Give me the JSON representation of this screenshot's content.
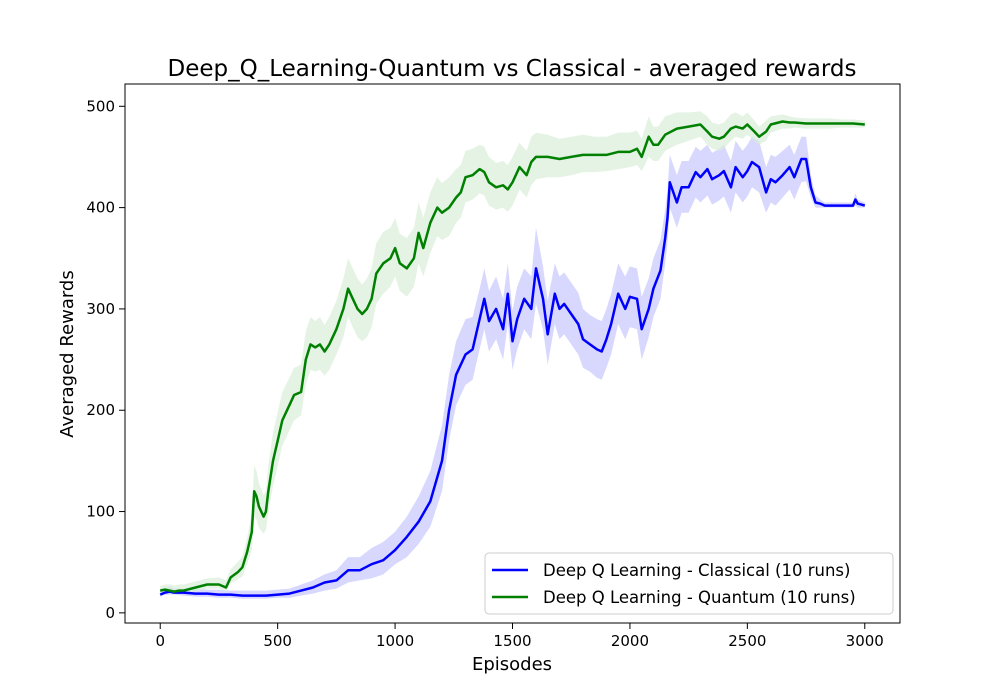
{
  "chart_data": {
    "type": "line",
    "title": "Deep_Q_Learning-Quantum vs Classical - averaged rewards",
    "xlabel": "Episodes",
    "ylabel": "Averaged Rewards",
    "xlim": [
      -150,
      3150
    ],
    "ylim": [
      -10,
      522
    ],
    "xticks": [
      0,
      500,
      1000,
      1500,
      2000,
      2500,
      3000
    ],
    "yticks": [
      0,
      100,
      200,
      300,
      400,
      500
    ],
    "grid": false,
    "legend_position": "bottom-right",
    "series": [
      {
        "name": "Deep Q Learning - Classical (10 runs)",
        "color": "#0000ff",
        "band_color": "#c8c8ff",
        "x": [
          0,
          20,
          40,
          60,
          100,
          150,
          200,
          250,
          300,
          350,
          400,
          450,
          500,
          550,
          600,
          650,
          700,
          750,
          800,
          850,
          900,
          950,
          1000,
          1050,
          1100,
          1150,
          1200,
          1230,
          1260,
          1300,
          1330,
          1360,
          1380,
          1400,
          1430,
          1460,
          1480,
          1500,
          1520,
          1550,
          1580,
          1600,
          1630,
          1650,
          1680,
          1700,
          1720,
          1750,
          1780,
          1800,
          1830,
          1860,
          1880,
          1900,
          1920,
          1950,
          1980,
          2000,
          2030,
          2050,
          2080,
          2100,
          2130,
          2150,
          2160,
          2170,
          2200,
          2220,
          2250,
          2280,
          2300,
          2330,
          2350,
          2380,
          2400,
          2430,
          2450,
          2480,
          2500,
          2520,
          2550,
          2580,
          2600,
          2620,
          2650,
          2680,
          2700,
          2730,
          2750,
          2770,
          2790,
          2810,
          2830,
          2850,
          2900,
          2950,
          2960,
          2970,
          3000
        ],
        "y": [
          18,
          20,
          21,
          20,
          20,
          19,
          19,
          18,
          18,
          17,
          17,
          17,
          18,
          19,
          22,
          25,
          30,
          32,
          42,
          42,
          48,
          52,
          62,
          75,
          90,
          110,
          150,
          200,
          235,
          255,
          260,
          290,
          310,
          288,
          300,
          280,
          315,
          268,
          290,
          310,
          300,
          340,
          310,
          275,
          315,
          300,
          305,
          295,
          285,
          270,
          265,
          260,
          258,
          270,
          285,
          315,
          300,
          312,
          310,
          280,
          300,
          320,
          338,
          370,
          390,
          425,
          405,
          420,
          420,
          435,
          430,
          438,
          428,
          432,
          436,
          420,
          440,
          430,
          436,
          445,
          440,
          415,
          428,
          425,
          432,
          440,
          430,
          448,
          448,
          420,
          405,
          404,
          402,
          402,
          402,
          402,
          408,
          404,
          402
        ],
        "band_low": [
          16,
          18,
          18,
          18,
          17,
          16,
          16,
          15,
          15,
          14,
          14,
          14,
          15,
          15,
          17,
          19,
          22,
          24,
          30,
          32,
          34,
          38,
          48,
          55,
          68,
          85,
          120,
          170,
          205,
          225,
          230,
          260,
          280,
          258,
          270,
          250,
          285,
          240,
          260,
          280,
          270,
          305,
          280,
          245,
          285,
          270,
          275,
          265,
          255,
          242,
          238,
          232,
          230,
          242,
          255,
          285,
          270,
          282,
          280,
          250,
          272,
          292,
          310,
          345,
          365,
          400,
          380,
          395,
          395,
          410,
          405,
          412,
          403,
          407,
          411,
          395,
          415,
          405,
          411,
          420,
          415,
          395,
          405,
          402,
          410,
          418,
          408,
          425,
          426,
          410,
          400,
          400,
          400,
          400,
          400,
          400,
          402,
          400,
          400
        ],
        "band_high": [
          22,
          24,
          26,
          24,
          24,
          24,
          23,
          23,
          22,
          22,
          22,
          22,
          23,
          24,
          28,
          32,
          38,
          42,
          55,
          55,
          64,
          70,
          80,
          95,
          115,
          140,
          185,
          235,
          268,
          290,
          292,
          320,
          340,
          318,
          332,
          310,
          345,
          298,
          322,
          340,
          332,
          380,
          342,
          308,
          345,
          332,
          336,
          326,
          316,
          300,
          294,
          290,
          288,
          300,
          315,
          345,
          332,
          342,
          340,
          312,
          330,
          350,
          368,
          398,
          418,
          452,
          432,
          446,
          446,
          460,
          456,
          462,
          454,
          458,
          462,
          446,
          466,
          456,
          462,
          470,
          466,
          440,
          452,
          450,
          456,
          462,
          452,
          470,
          470,
          432,
          412,
          408,
          405,
          405,
          405,
          405,
          414,
          408,
          405
        ]
      },
      {
        "name": "Deep Q Learning - Quantum (10 runs)",
        "color": "#008000",
        "band_color": "#d8eed8",
        "x": [
          0,
          20,
          40,
          60,
          80,
          100,
          150,
          200,
          250,
          280,
          300,
          330,
          350,
          370,
          390,
          400,
          410,
          420,
          440,
          450,
          460,
          480,
          500,
          520,
          550,
          570,
          600,
          620,
          640,
          660,
          680,
          700,
          720,
          750,
          780,
          800,
          820,
          840,
          860,
          880,
          900,
          920,
          950,
          980,
          1000,
          1020,
          1050,
          1080,
          1100,
          1120,
          1150,
          1180,
          1200,
          1230,
          1260,
          1280,
          1300,
          1330,
          1360,
          1380,
          1400,
          1430,
          1460,
          1480,
          1500,
          1530,
          1560,
          1580,
          1600,
          1650,
          1700,
          1750,
          1800,
          1850,
          1900,
          1950,
          2000,
          2030,
          2050,
          2080,
          2100,
          2120,
          2150,
          2200,
          2250,
          2300,
          2330,
          2350,
          2380,
          2400,
          2430,
          2450,
          2480,
          2500,
          2530,
          2550,
          2580,
          2600,
          2650,
          2680,
          2700,
          2750,
          2800,
          2850,
          2900,
          2950,
          3000
        ],
        "y": [
          22,
          23,
          22,
          21,
          22,
          22,
          25,
          28,
          28,
          25,
          35,
          40,
          45,
          60,
          80,
          120,
          115,
          105,
          95,
          100,
          120,
          150,
          170,
          190,
          205,
          215,
          218,
          250,
          265,
          262,
          265,
          258,
          265,
          280,
          300,
          320,
          310,
          300,
          295,
          300,
          310,
          335,
          345,
          350,
          360,
          345,
          340,
          350,
          375,
          360,
          385,
          400,
          395,
          400,
          410,
          415,
          430,
          432,
          438,
          435,
          425,
          420,
          422,
          418,
          425,
          440,
          432,
          445,
          450,
          450,
          448,
          450,
          452,
          452,
          452,
          455,
          455,
          458,
          450,
          470,
          462,
          462,
          472,
          478,
          480,
          482,
          475,
          470,
          468,
          470,
          478,
          480,
          478,
          482,
          475,
          470,
          475,
          482,
          485,
          484,
          484,
          483,
          483,
          483,
          483,
          483,
          482
        ],
        "band_low": [
          19,
          20,
          19,
          18,
          19,
          19,
          21,
          24,
          24,
          21,
          29,
          33,
          36,
          48,
          62,
          95,
          92,
          84,
          78,
          82,
          98,
          125,
          145,
          165,
          180,
          190,
          195,
          225,
          240,
          238,
          240,
          234,
          240,
          255,
          272,
          292,
          282,
          272,
          268,
          272,
          282,
          305,
          315,
          322,
          332,
          318,
          312,
          322,
          345,
          332,
          355,
          372,
          368,
          372,
          385,
          390,
          405,
          408,
          414,
          412,
          402,
          398,
          400,
          396,
          402,
          418,
          410,
          422,
          428,
          430,
          430,
          432,
          435,
          435,
          436,
          438,
          440,
          442,
          436,
          450,
          446,
          446,
          456,
          462,
          466,
          470,
          462,
          458,
          456,
          458,
          466,
          470,
          468,
          472,
          466,
          462,
          466,
          474,
          478,
          478,
          479,
          478,
          478,
          478,
          479,
          479,
          479
        ],
        "band_high": [
          26,
          28,
          28,
          27,
          28,
          28,
          31,
          34,
          35,
          32,
          43,
          50,
          56,
          74,
          98,
          145,
          140,
          128,
          116,
          120,
          145,
          178,
          198,
          218,
          232,
          242,
          245,
          278,
          292,
          288,
          292,
          284,
          292,
          308,
          330,
          350,
          340,
          330,
          324,
          330,
          340,
          365,
          376,
          380,
          390,
          374,
          370,
          380,
          405,
          390,
          415,
          430,
          424,
          430,
          438,
          442,
          456,
          458,
          462,
          460,
          450,
          444,
          446,
          442,
          450,
          464,
          456,
          470,
          474,
          472,
          468,
          470,
          472,
          470,
          470,
          474,
          474,
          476,
          468,
          490,
          480,
          480,
          490,
          494,
          494,
          495,
          490,
          484,
          482,
          484,
          492,
          494,
          490,
          494,
          486,
          480,
          486,
          490,
          492,
          490,
          489,
          488,
          488,
          488,
          487,
          487,
          486
        ]
      }
    ]
  }
}
